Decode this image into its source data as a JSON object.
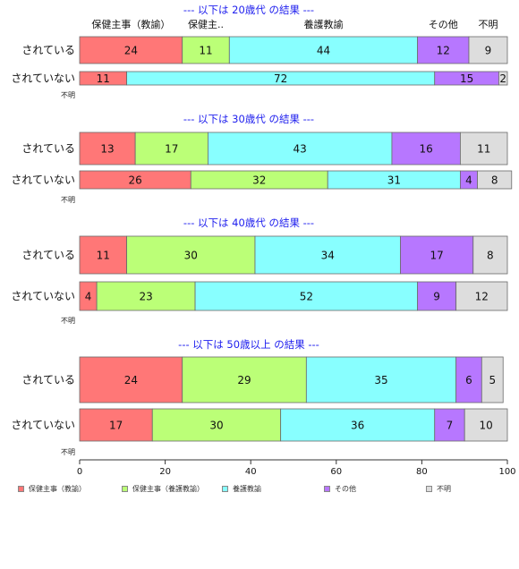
{
  "chart_data": {
    "type": "bar",
    "orientation": "horizontal",
    "stacked": true,
    "categories": [
      "保健主事（教諭）",
      "保健主事（養護教諭）",
      "養護教諭",
      "その他",
      "不明"
    ],
    "colors": [
      "#ff7777",
      "#bbff77",
      "#88ffff",
      "#b777ff",
      "#dddddd"
    ],
    "bar_border_color": "#6a6a6a",
    "column_headers": [
      "保健主事（教諭）",
      "保健主..",
      "養護教諭",
      "その他",
      "不明"
    ],
    "xlim": [
      0,
      100
    ],
    "xticks": [
      0,
      20,
      40,
      60,
      80,
      100
    ],
    "unknown_label": "不明",
    "legend_position": "bottom",
    "panels": [
      {
        "title": "--- 以下は 20歳代 の結果 ---",
        "rows": [
          {
            "label": "されている",
            "values": [
              24,
              11,
              44,
              12,
              9
            ]
          },
          {
            "label": "されていない",
            "values": [
              11,
              0,
              72,
              15,
              2
            ]
          }
        ]
      },
      {
        "title": "--- 以下は 30歳代 の結果 ---",
        "rows": [
          {
            "label": "されている",
            "values": [
              13,
              17,
              43,
              16,
              11
            ]
          },
          {
            "label": "されていない",
            "values": [
              26,
              32,
              31,
              4,
              8
            ]
          }
        ]
      },
      {
        "title": "--- 以下は 40歳代 の結果 ---",
        "rows": [
          {
            "label": "されている",
            "values": [
              11,
              30,
              34,
              17,
              8
            ]
          },
          {
            "label": "されていない",
            "values": [
              4,
              23,
              52,
              9,
              12
            ]
          }
        ]
      },
      {
        "title": "--- 以下は 50歳以上 の結果 ---",
        "rows": [
          {
            "label": "されている",
            "values": [
              24,
              29,
              35,
              6,
              5
            ]
          },
          {
            "label": "されていない",
            "values": [
              17,
              30,
              36,
              7,
              10
            ]
          }
        ]
      }
    ]
  }
}
